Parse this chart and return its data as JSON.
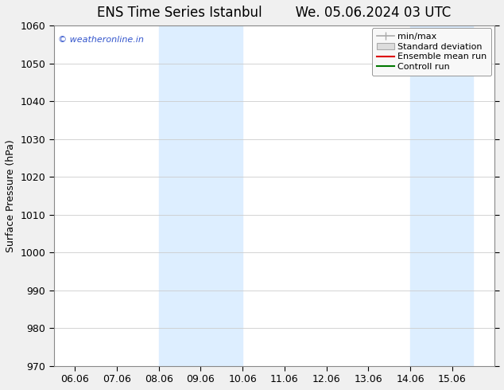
{
  "title_left": "ENS Time Series Istanbul",
  "title_right": "We. 05.06.2024 03 UTC",
  "ylabel": "Surface Pressure (hPa)",
  "ylim": [
    970,
    1060
  ],
  "yticks": [
    970,
    980,
    990,
    1000,
    1010,
    1020,
    1030,
    1040,
    1050,
    1060
  ],
  "xlim": [
    -0.5,
    10.0
  ],
  "xtick_labels": [
    "06.06",
    "07.06",
    "08.06",
    "09.06",
    "10.06",
    "11.06",
    "12.06",
    "13.06",
    "14.06",
    "15.06"
  ],
  "xtick_positions": [
    0,
    1,
    2,
    3,
    4,
    5,
    6,
    7,
    8,
    9
  ],
  "shaded_bands": [
    {
      "xmin": 2.0,
      "xmax": 4.0
    },
    {
      "xmin": 8.0,
      "xmax": 9.5
    }
  ],
  "shade_color": "#ddeeff",
  "watermark": "© weatheronline.in",
  "watermark_color": "#3355cc",
  "legend_labels": [
    "min/max",
    "Standard deviation",
    "Ensemble mean run",
    "Controll run"
  ],
  "legend_line_colors": [
    "#aaaaaa",
    "#cccccc",
    "#dd0000",
    "#007700"
  ],
  "fig_facecolor": "#f0f0f0",
  "plot_facecolor": "#ffffff",
  "grid_color": "#cccccc",
  "title_fontsize": 12,
  "axis_label_fontsize": 9,
  "tick_fontsize": 9,
  "legend_fontsize": 8
}
